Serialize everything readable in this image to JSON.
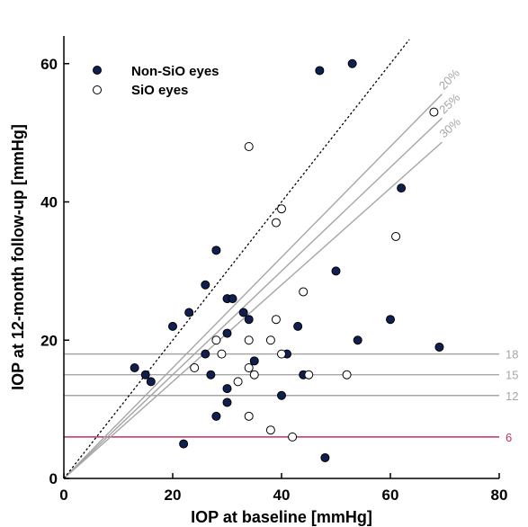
{
  "colors": {
    "non_sio_fill": "#0f1f4f",
    "sio_fill": "#ffffff",
    "reference": "#a6a6a6",
    "threshold_6": "#c0335a",
    "identity": "#000000"
  },
  "chart_data": {
    "type": "scatter",
    "xlabel": "IOP at baseline [mmHg]",
    "ylabel": "IOP at 12-month follow-up [mmHg]",
    "xlim": [
      0,
      80
    ],
    "ylim": [
      0,
      64
    ],
    "x_ticks": [
      0,
      20,
      40,
      60,
      80
    ],
    "y_ticks": [
      0,
      20,
      40,
      60
    ],
    "grid": false,
    "legend_position": "top-left",
    "series": [
      {
        "name": "Non-SiO eyes",
        "marker": "filled-circle",
        "points": [
          [
            47,
            59
          ],
          [
            53,
            60
          ],
          [
            62,
            42
          ],
          [
            28,
            33
          ],
          [
            26,
            28
          ],
          [
            50,
            30
          ],
          [
            23,
            24
          ],
          [
            30,
            26
          ],
          [
            31,
            26
          ],
          [
            33,
            24
          ],
          [
            34,
            23
          ],
          [
            20,
            22
          ],
          [
            26,
            18
          ],
          [
            30,
            21
          ],
          [
            35,
            17
          ],
          [
            43,
            22
          ],
          [
            41,
            18
          ],
          [
            54,
            20
          ],
          [
            60,
            23
          ],
          [
            69,
            19
          ],
          [
            13,
            16
          ],
          [
            15,
            15
          ],
          [
            16,
            14
          ],
          [
            27,
            15
          ],
          [
            30,
            13
          ],
          [
            44,
            15
          ],
          [
            40,
            12
          ],
          [
            30,
            11
          ],
          [
            28,
            9
          ],
          [
            22,
            5
          ],
          [
            48,
            3
          ]
        ]
      },
      {
        "name": "SiO eyes",
        "marker": "open-circle",
        "points": [
          [
            68,
            53
          ],
          [
            34,
            48
          ],
          [
            40,
            39
          ],
          [
            39,
            37
          ],
          [
            61,
            35
          ],
          [
            44,
            27
          ],
          [
            28,
            20
          ],
          [
            34,
            20
          ],
          [
            39,
            23
          ],
          [
            38,
            20
          ],
          [
            40,
            18
          ],
          [
            29,
            18
          ],
          [
            24,
            16
          ],
          [
            34,
            16
          ],
          [
            35,
            15
          ],
          [
            45,
            15
          ],
          [
            52,
            15
          ],
          [
            32,
            14
          ],
          [
            34,
            9
          ],
          [
            38,
            7
          ],
          [
            42,
            6
          ]
        ]
      }
    ],
    "reference_lines": {
      "identity": {
        "style": "dotted",
        "slope": 1
      },
      "reduction": [
        {
          "label": "20%",
          "slope": 0.8
        },
        {
          "label": "25%",
          "slope": 0.75
        },
        {
          "label": "30%",
          "slope": 0.7
        }
      ],
      "horizontal": [
        {
          "label": "18",
          "y": 18
        },
        {
          "label": "15",
          "y": 15
        },
        {
          "label": "12",
          "y": 12
        },
        {
          "label": "6",
          "y": 6,
          "highlight": true
        }
      ]
    }
  }
}
